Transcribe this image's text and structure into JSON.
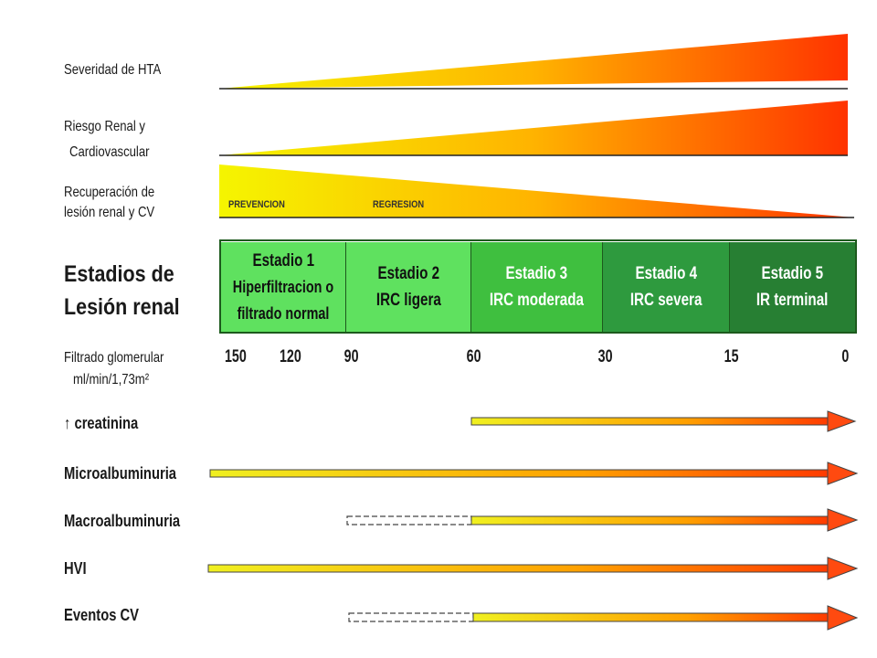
{
  "rows": {
    "severity": "Severidad de HTA",
    "risk_line1": "Riesgo Renal  y",
    "risk_line2": "Cardiovascular",
    "recovery_line1": "Recuperación de",
    "recovery_line2": "lesión renal y CV"
  },
  "recovery_tags": {
    "prevention": "PREVENCION",
    "regression": "REGRESION"
  },
  "stages_title": {
    "line1": "Estadios de",
    "line2": "Lesión renal"
  },
  "stages": [
    {
      "title": "Estadio 1",
      "line2": "Hiperfiltracion o",
      "line3": "filtrado normal",
      "color": "#5fe15f"
    },
    {
      "title": "Estadio 2",
      "line2": "IRC ligera",
      "line3": "",
      "color": "#5fe15f"
    },
    {
      "title": "Estadio 3",
      "line2": "IRC moderada",
      "line3": "",
      "color": "#3fbf3f"
    },
    {
      "title": "Estadio 4",
      "line2": "IRC severa",
      "line3": "",
      "color": "#2e9a3e"
    },
    {
      "title": "Estadio 5",
      "line2": "IR terminal",
      "line3": "",
      "color": "#277f33"
    }
  ],
  "gfr": {
    "label_line1": "Filtrado glomerular",
    "label_line2": "ml/min/1,73m²",
    "ticks": [
      "150",
      "120",
      "90",
      "60",
      "30",
      "15",
      "0"
    ]
  },
  "markers": [
    {
      "label": "↑ creatinina",
      "dashed_from": null,
      "solid_from": "60"
    },
    {
      "label": "Microalbuminuria",
      "dashed_from": null,
      "solid_from": "150"
    },
    {
      "label": "Macroalbuminuria",
      "dashed_from": "90",
      "solid_from": "60"
    },
    {
      "label": "HVI",
      "dashed_from": null,
      "solid_from": "150"
    },
    {
      "label": "Eventos CV",
      "dashed_from": "90",
      "solid_from": "60"
    }
  ],
  "colors": {
    "gradient_start": "#f5f500",
    "gradient_end": "#ff3300",
    "stage_text_dark": "#111111",
    "stage_text_light": "#ffffff"
  }
}
